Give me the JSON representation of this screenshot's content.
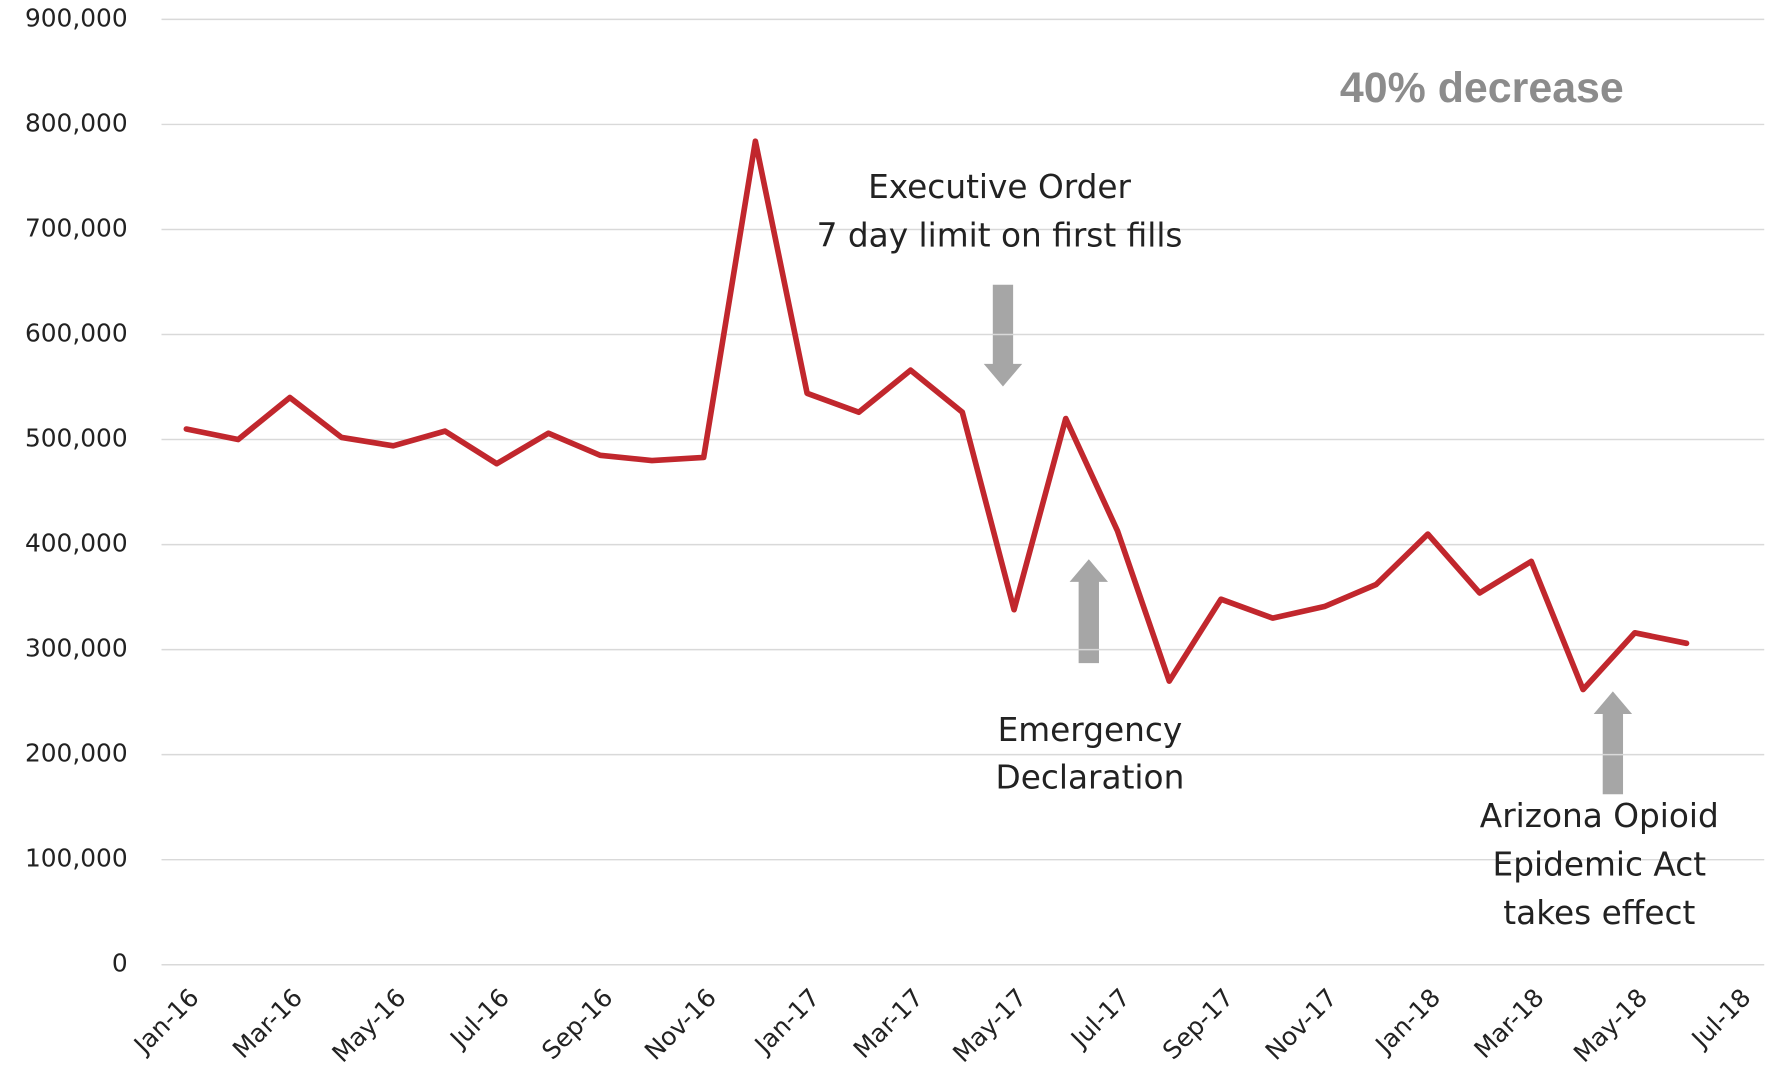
{
  "chart_data": {
    "type": "line",
    "categories": [
      "Jan-16",
      null,
      "Mar-16",
      null,
      "May-16",
      null,
      "Jul-16",
      null,
      "Sep-16",
      null,
      "Nov-16",
      null,
      "Jan-17",
      null,
      "Mar-17",
      null,
      "May-17",
      null,
      "Jul-17",
      null,
      "Sep-17",
      null,
      "Nov-17",
      null,
      "Jan-18",
      null,
      "Mar-18",
      null,
      "May-18",
      null,
      "Jul-18"
    ],
    "series": [
      {
        "color": "#c1272d",
        "values": [
          510000,
          500000,
          540000,
          502000,
          494000,
          508000,
          477000,
          506000,
          485000,
          480000,
          483000,
          784000,
          544000,
          526000,
          566000,
          526000,
          338000,
          520000,
          413000,
          270000,
          348000,
          330000,
          341000,
          362000,
          410000,
          354000,
          384000,
          262000,
          316000,
          306000,
          null
        ]
      }
    ],
    "ylim": [
      0,
      900000
    ],
    "yticks": [
      0,
      {
        "value": 100000,
        "label": "100,000"
      },
      {
        "value": 200000,
        "label": "200,000"
      },
      {
        "value": 300000,
        "label": "300,000"
      },
      {
        "value": 400000,
        "label": "400,000"
      },
      {
        "value": 500000,
        "label": "500,000"
      },
      {
        "value": 600000,
        "label": "600,000"
      },
      {
        "value": 700000,
        "label": "700,000"
      },
      {
        "value": 800000,
        "label": "800,000"
      },
      {
        "value": 900000,
        "label": "900,000"
      }
    ],
    "grid": true,
    "annotations": [
      {
        "lines": [
          "40% decrease"
        ]
      },
      {
        "lines": [
          "Executive Order",
          "7 day limit on first fills"
        ]
      },
      {
        "lines": [
          "Emergency",
          "Declaration"
        ]
      },
      {
        "lines": [
          "Arizona Opioid",
          "Epidemic Act",
          "takes effect"
        ]
      }
    ]
  }
}
